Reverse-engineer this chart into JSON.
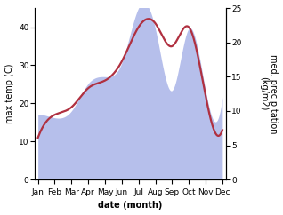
{
  "months": [
    "Jan",
    "Feb",
    "Mar",
    "Apr",
    "May",
    "Jun",
    "Jul",
    "Aug",
    "Sep",
    "Oct",
    "Nov",
    "Dec"
  ],
  "month_indices": [
    0,
    1,
    2,
    3,
    4,
    5,
    6,
    7,
    8,
    9,
    10,
    11
  ],
  "temp_max": [
    11,
    17,
    19,
    24,
    26,
    31,
    40,
    41,
    35,
    40,
    22,
    13
  ],
  "precipitation": [
    9.5,
    9,
    10,
    14,
    15,
    17,
    25,
    22,
    13,
    22,
    13,
    12
  ],
  "temp_color": "#b03040",
  "precip_color": "#aab4e8",
  "temp_ylim": [
    0,
    45
  ],
  "precip_ylim": [
    0,
    25
  ],
  "temp_yticks": [
    0,
    10,
    20,
    30,
    40
  ],
  "precip_yticks": [
    0,
    5,
    10,
    15,
    20,
    25
  ],
  "xlabel": "date (month)",
  "ylabel_left": "max temp (C)",
  "ylabel_right": "med. precipitation\n(kg/m2)",
  "label_fontsize": 7,
  "tick_fontsize": 6.5,
  "background_color": "#ffffff",
  "line_width": 1.6
}
